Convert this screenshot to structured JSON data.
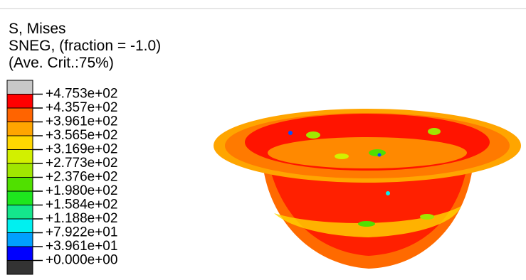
{
  "header": {
    "lines": [
      "S, Mises",
      "SNEG, (fraction = -1.0)",
      "(Ave. Crit.:75%)"
    ]
  },
  "legend": {
    "labels": [
      "+4.753e+02",
      "+4.357e+02",
      "+3.961e+02",
      "+3.565e+02",
      "+3.169e+02",
      "+2.773e+02",
      "+2.376e+02",
      "+1.980e+02",
      "+1.584e+02",
      "+1.188e+02",
      "+7.922e+01",
      "+3.961e+01",
      "+0.000e+00"
    ],
    "colors": [
      "#c8c8c8",
      "#ff0000",
      "#ff6400",
      "#ffa500",
      "#ffd700",
      "#d2f000",
      "#a0e600",
      "#50e000",
      "#1ee61e",
      "#14e68c",
      "#00f0f0",
      "#00a0ff",
      "#0000ff",
      "#333333"
    ]
  }
}
